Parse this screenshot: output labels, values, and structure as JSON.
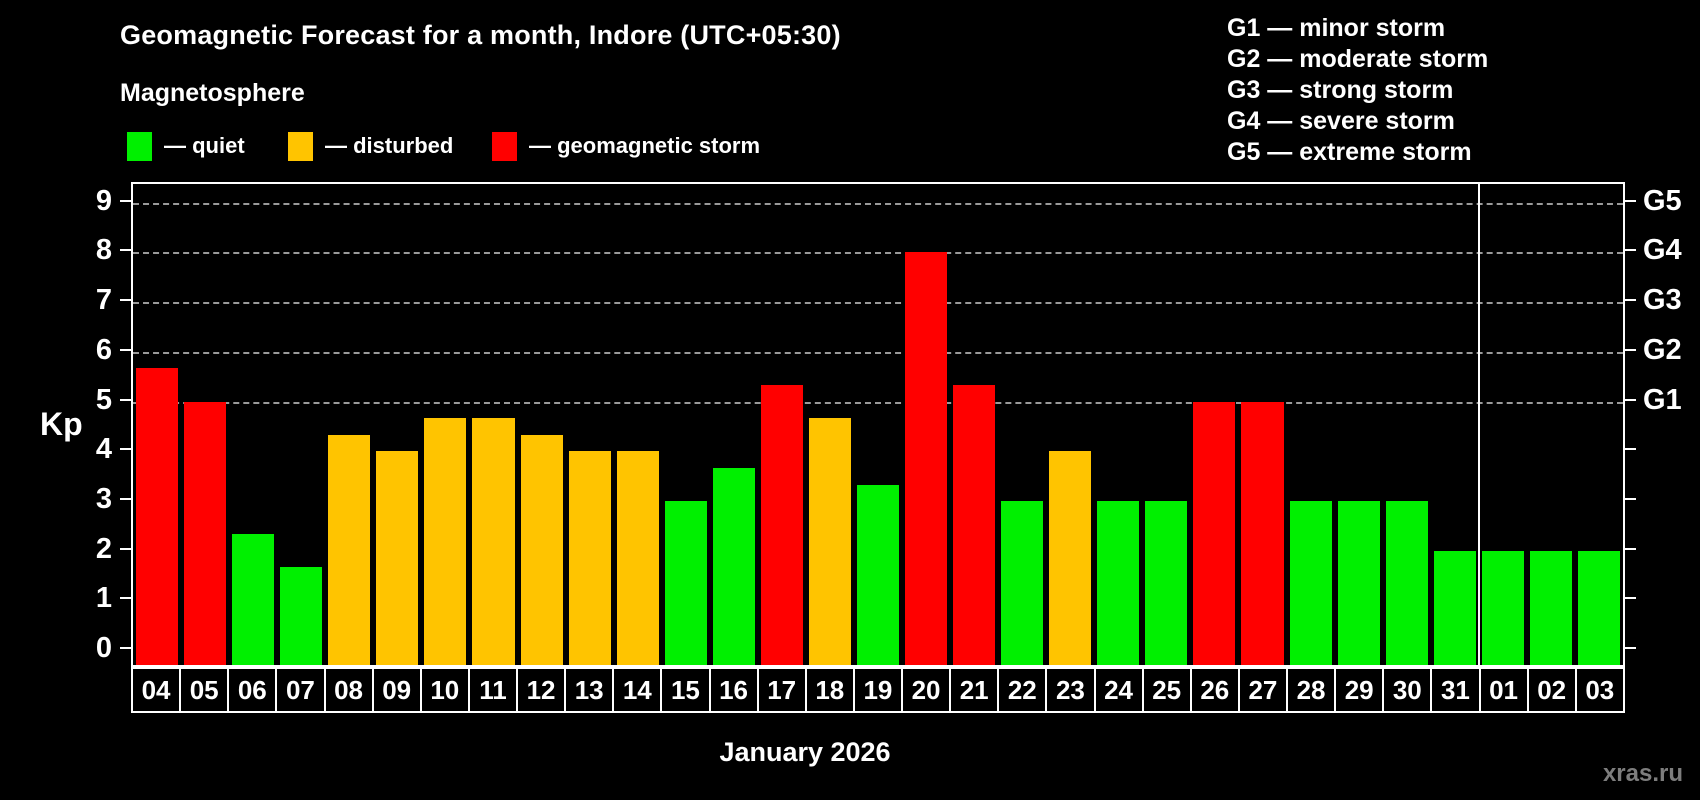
{
  "header": {
    "title": "Geomagnetic Forecast for a month, Indore (UTC+05:30)",
    "subtitle": "Magnetosphere"
  },
  "legend": {
    "items": [
      {
        "state": "quiet",
        "label": "— quiet"
      },
      {
        "state": "disturbed",
        "label": "— disturbed"
      },
      {
        "state": "storm",
        "label": "— geomagnetic storm"
      }
    ]
  },
  "g_legend": [
    "G1 — minor storm",
    "G2 — moderate storm",
    "G3 — strong storm",
    "G4 — severe storm",
    "G5 — extreme storm"
  ],
  "axis": {
    "y_label": "Kp",
    "y_ticks": [
      0,
      1,
      2,
      3,
      4,
      5,
      6,
      7,
      8,
      9
    ],
    "g_ticks": [
      "G1",
      "G2",
      "G3",
      "G4",
      "G5"
    ],
    "x_label": "January 2026"
  },
  "watermark": "xras.ru",
  "colors": {
    "quiet": "#00f000",
    "disturbed": "#ffc400",
    "storm": "#ff0000",
    "background": "#000000",
    "grid": "#9a9a9a",
    "axis": "#ffffff",
    "watermark": "#7d7d7d"
  },
  "chart_data": {
    "type": "bar",
    "title": "Geomagnetic Forecast for a month, Indore (UTC+05:30)",
    "xlabel": "January 2026",
    "ylabel": "Kp",
    "ylim": [
      0,
      9.4
    ],
    "grid": "horizontal dashed lines at Kp 5-9 mapped to G1-G5 on right axis",
    "legend_position": "top-left",
    "month_boundary_after_index": 27,
    "days": [
      {
        "label": "04",
        "kp": 5.67,
        "state": "storm"
      },
      {
        "label": "05",
        "kp": 5.0,
        "state": "storm"
      },
      {
        "label": "06",
        "kp": 2.33,
        "state": "quiet"
      },
      {
        "label": "07",
        "kp": 1.67,
        "state": "quiet"
      },
      {
        "label": "08",
        "kp": 4.33,
        "state": "disturbed"
      },
      {
        "label": "09",
        "kp": 4.0,
        "state": "disturbed"
      },
      {
        "label": "10",
        "kp": 4.67,
        "state": "disturbed"
      },
      {
        "label": "11",
        "kp": 4.67,
        "state": "disturbed"
      },
      {
        "label": "12",
        "kp": 4.33,
        "state": "disturbed"
      },
      {
        "label": "13",
        "kp": 4.0,
        "state": "disturbed"
      },
      {
        "label": "14",
        "kp": 4.0,
        "state": "disturbed"
      },
      {
        "label": "15",
        "kp": 3.0,
        "state": "quiet"
      },
      {
        "label": "16",
        "kp": 3.67,
        "state": "quiet"
      },
      {
        "label": "17",
        "kp": 5.33,
        "state": "storm"
      },
      {
        "label": "18",
        "kp": 4.67,
        "state": "disturbed"
      },
      {
        "label": "19",
        "kp": 3.33,
        "state": "quiet"
      },
      {
        "label": "20",
        "kp": 8.0,
        "state": "storm"
      },
      {
        "label": "21",
        "kp": 5.33,
        "state": "storm"
      },
      {
        "label": "22",
        "kp": 3.0,
        "state": "quiet"
      },
      {
        "label": "23",
        "kp": 4.0,
        "state": "disturbed"
      },
      {
        "label": "24",
        "kp": 3.0,
        "state": "quiet"
      },
      {
        "label": "25",
        "kp": 3.0,
        "state": "quiet"
      },
      {
        "label": "26",
        "kp": 5.0,
        "state": "storm"
      },
      {
        "label": "27",
        "kp": 5.0,
        "state": "storm"
      },
      {
        "label": "28",
        "kp": 3.0,
        "state": "quiet"
      },
      {
        "label": "29",
        "kp": 3.0,
        "state": "quiet"
      },
      {
        "label": "30",
        "kp": 3.0,
        "state": "quiet"
      },
      {
        "label": "31",
        "kp": 2.0,
        "state": "quiet"
      },
      {
        "label": "01",
        "kp": 2.0,
        "state": "quiet"
      },
      {
        "label": "02",
        "kp": 2.0,
        "state": "quiet"
      },
      {
        "label": "03",
        "kp": 2.0,
        "state": "quiet"
      }
    ]
  }
}
